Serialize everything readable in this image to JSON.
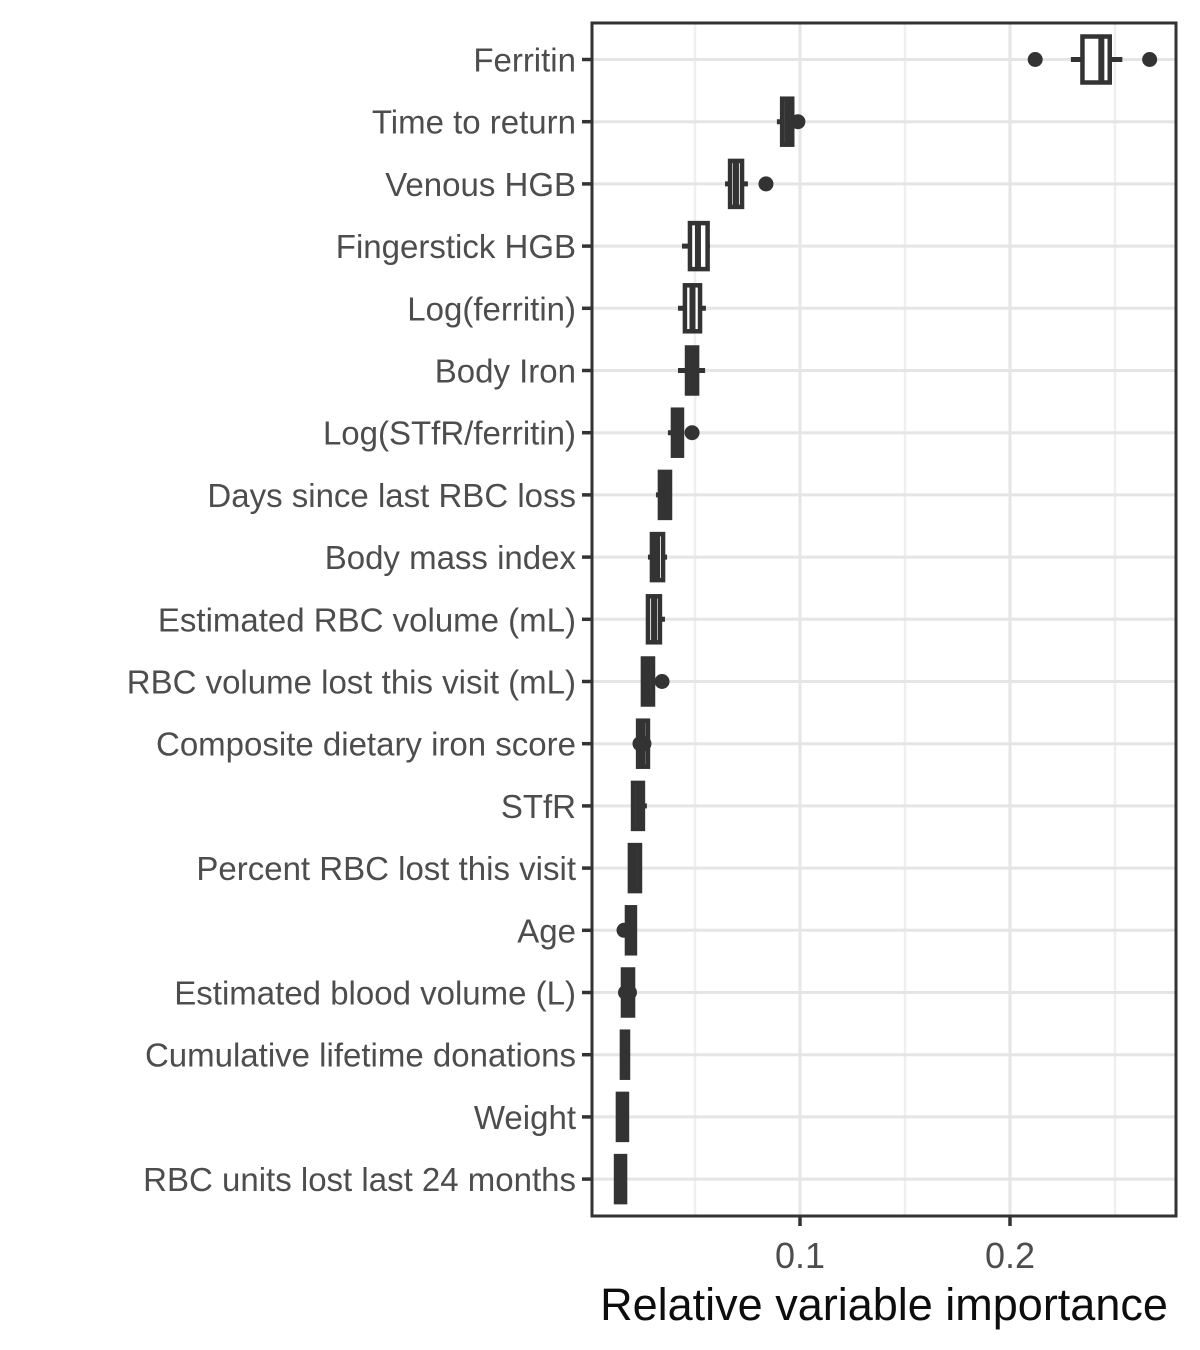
{
  "chart_data": {
    "type": "boxplot",
    "orientation": "horizontal",
    "title": "",
    "xlabel": "Relative variable importance",
    "ylabel": "",
    "xlim": [
      0,
      0.279
    ],
    "x_major_ticks": [
      0.1,
      0.2
    ],
    "x_tick_labels": [
      "0.1",
      "0.2"
    ],
    "x_minor_gridlines": [
      0.05,
      0.15,
      0.25
    ],
    "grid": true,
    "legend": "none",
    "categories": [
      "Ferritin",
      "Time to return",
      "Venous HGB",
      "Fingerstick HGB",
      "Log(ferritin)",
      "Body Iron",
      "Log(STfR/ferritin)",
      "Days since last RBC loss",
      "Body mass index",
      "Estimated RBC volume (mL)",
      "RBC volume lost this visit (mL)",
      "Composite dietary iron score",
      "STfR",
      "Percent RBC lost this visit",
      "Age",
      "Estimated blood volume (L)",
      "Cumulative lifetime donations",
      "Weight",
      "RBC units lost last 24 months"
    ],
    "series": [
      {
        "label": "Ferritin",
        "whisker_low": 0.229,
        "q1": 0.2345,
        "median": 0.2435,
        "q3": 0.2475,
        "whisker_high": 0.2535,
        "outliers": [
          0.212,
          0.2665
        ]
      },
      {
        "label": "Time to return",
        "whisker_low": 0.089,
        "q1": 0.0915,
        "median": 0.094,
        "q3": 0.0963,
        "whisker_high": 0.097,
        "outliers": [
          0.099
        ]
      },
      {
        "label": "Venous HGB",
        "whisker_low": 0.0643,
        "q1": 0.0667,
        "median": 0.0695,
        "q3": 0.0724,
        "whisker_high": 0.0752,
        "outliers": [
          0.0838
        ]
      },
      {
        "label": "Fingerstick HGB",
        "whisker_low": 0.0438,
        "q1": 0.0476,
        "median": 0.0514,
        "q3": 0.056,
        "whisker_high": 0.0571,
        "outliers": []
      },
      {
        "label": "Log(ferritin)",
        "whisker_low": 0.0419,
        "q1": 0.0452,
        "median": 0.0488,
        "q3": 0.0524,
        "whisker_high": 0.0552,
        "outliers": []
      },
      {
        "label": "Body Iron",
        "whisker_low": 0.0419,
        "q1": 0.0462,
        "median": 0.0486,
        "q3": 0.051,
        "whisker_high": 0.0548,
        "outliers": []
      },
      {
        "label": "Log(STfR/ferritin)",
        "whisker_low": 0.0371,
        "q1": 0.0395,
        "median": 0.0417,
        "q3": 0.0438,
        "whisker_high": 0.0448,
        "outliers": [
          0.0486
        ]
      },
      {
        "label": "Days since last RBC loss",
        "whisker_low": 0.0314,
        "q1": 0.0333,
        "median": 0.0357,
        "q3": 0.0381,
        "whisker_high": 0.039,
        "outliers": []
      },
      {
        "label": "Body mass index",
        "whisker_low": 0.0276,
        "q1": 0.0295,
        "median": 0.0319,
        "q3": 0.0348,
        "whisker_high": 0.0367,
        "outliers": []
      },
      {
        "label": "Estimated RBC volume (mL)",
        "whisker_low": 0.0271,
        "q1": 0.0276,
        "median": 0.0305,
        "q3": 0.0333,
        "whisker_high": 0.0357,
        "outliers": []
      },
      {
        "label": "RBC volume lost this visit (mL)",
        "whisker_low": 0.0248,
        "q1": 0.0252,
        "median": 0.0276,
        "q3": 0.03,
        "whisker_high": 0.0307,
        "outliers": [
          0.0343
        ]
      },
      {
        "label": "Composite dietary iron score",
        "whisker_low": 0.0219,
        "q1": 0.0229,
        "median": 0.025,
        "q3": 0.0276,
        "whisker_high": 0.0286,
        "outliers": [
          0.0238,
          0.0257
        ]
      },
      {
        "label": "STfR",
        "whisker_low": 0.02,
        "q1": 0.0205,
        "median": 0.0229,
        "q3": 0.0252,
        "whisker_high": 0.0271,
        "outliers": []
      },
      {
        "label": "Percent RBC lost this visit",
        "whisker_low": 0.0181,
        "q1": 0.019,
        "median": 0.0214,
        "q3": 0.0238,
        "whisker_high": 0.0245,
        "outliers": []
      },
      {
        "label": "Age",
        "whisker_low": 0.0171,
        "q1": 0.0176,
        "median": 0.0195,
        "q3": 0.0214,
        "whisker_high": 0.0221,
        "outliers": [
          0.0162
        ]
      },
      {
        "label": "Estimated blood volume (L)",
        "whisker_low": 0.0152,
        "q1": 0.0157,
        "median": 0.0181,
        "q3": 0.0205,
        "whisker_high": 0.021,
        "outliers": [
          0.0169,
          0.0188
        ]
      },
      {
        "label": "Cumulative lifetime donations",
        "whisker_low": 0.0145,
        "q1": 0.0152,
        "median": 0.0167,
        "q3": 0.0181,
        "whisker_high": 0.0188,
        "outliers": []
      },
      {
        "label": "Weight",
        "whisker_low": 0.0129,
        "q1": 0.0133,
        "median": 0.0155,
        "q3": 0.0176,
        "whisker_high": 0.0181,
        "outliers": []
      },
      {
        "label": "RBC units lost last 24 months",
        "whisker_low": 0.0119,
        "q1": 0.0124,
        "median": 0.0145,
        "q3": 0.0167,
        "whisker_high": 0.0171,
        "outliers": []
      }
    ]
  },
  "colors": {
    "box_stroke": "#333333",
    "box_fill": "#ffffff",
    "outlier": "#333333",
    "panel_border": "#333333",
    "grid_major": "#e5e5e5",
    "grid_minor": "#efefef",
    "axis_text": "#4d4d4d",
    "axis_title": "#0d0d0d",
    "background": "#ffffff"
  }
}
